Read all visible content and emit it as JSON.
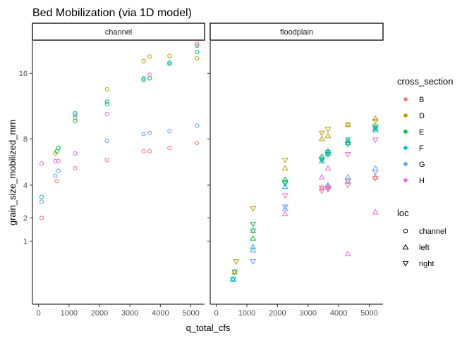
{
  "chart_data": {
    "type": "scatter",
    "title": "Bed Mobilization (via 1D model)",
    "xlabel": "q_total_cfs",
    "ylabel": "grain_size_mobilized_mm",
    "xlim": [
      -200,
      5450
    ],
    "ylim": [
      -0.6,
      21
    ],
    "x_ticks": [
      0,
      1000,
      2000,
      3000,
      4000,
      5000
    ],
    "x_tick_labels": [
      "0",
      "1000",
      "2000",
      "3000",
      "4000",
      "5000"
    ],
    "y_scale": "sqrt",
    "y_ticks": [
      1,
      2,
      4,
      8,
      16
    ],
    "y_tick_labels": [
      "1",
      "2",
      "4",
      "8",
      "16"
    ],
    "facets": [
      "channel",
      "floodplain"
    ],
    "legend_placement": "right",
    "colour_legend": {
      "title": "cross_section",
      "entries": [
        {
          "label": "B",
          "color": "#F8766D"
        },
        {
          "label": "D",
          "color": "#B79F00"
        },
        {
          "label": "E",
          "color": "#00BA38"
        },
        {
          "label": "F",
          "color": "#00BFC4"
        },
        {
          "label": "G",
          "color": "#619CFF"
        },
        {
          "label": "H",
          "color": "#F564E3"
        }
      ]
    },
    "shape_legend": {
      "title": "loc",
      "entries": [
        {
          "label": "channel",
          "shape": "circle"
        },
        {
          "label": "left",
          "shape": "triangle-up"
        },
        {
          "label": "right",
          "shape": "triangle-down"
        }
      ]
    },
    "series": [
      {
        "panel": "channel",
        "cross_section": "B",
        "loc": "channel",
        "x": [
          100,
          600,
          1200,
          2250,
          3450,
          3650,
          4300,
          5200
        ],
        "y": [
          2.0,
          4.3,
          5.3,
          6.0,
          6.8,
          6.8,
          7.1,
          7.6
        ]
      },
      {
        "panel": "channel",
        "cross_section": "D",
        "loc": "channel",
        "x": [
          550,
          1200,
          2250,
          3450,
          3650,
          4300,
          5200
        ],
        "y": [
          6.6,
          10.3,
          13.8,
          17.8,
          18.5,
          18.6,
          18.2
        ]
      },
      {
        "panel": "channel",
        "cross_section": "E",
        "loc": "channel",
        "x": [
          600,
          650,
          1200,
          2250,
          3450,
          3650,
          4300,
          5200
        ],
        "y": [
          6.8,
          7.1,
          9.9,
          12.2,
          15.1,
          15.3,
          17.4,
          20.2
        ]
      },
      {
        "panel": "channel",
        "cross_section": "F",
        "loc": "channel",
        "x": [
          100,
          1200,
          2250,
          3450,
          4300,
          5200
        ],
        "y": [
          3.2,
          10.8,
          11.9,
          15.3,
          17.6,
          19.2
        ]
      },
      {
        "panel": "channel",
        "cross_section": "G",
        "loc": "channel",
        "x": [
          100,
          550,
          650,
          1200,
          2250,
          3450,
          3650,
          4300,
          5200
        ],
        "y": [
          2.9,
          4.7,
          5.1,
          10.6,
          7.8,
          8.5,
          8.6,
          8.8,
          9.4
        ]
      },
      {
        "panel": "channel",
        "cross_section": "H",
        "loc": "channel",
        "x": [
          100,
          550,
          650,
          1200,
          2250,
          3650,
          5200
        ],
        "y": [
          5.7,
          5.9,
          5.9,
          6.6,
          10.7,
          15.8,
          20.5
        ]
      },
      {
        "panel": "floodplain",
        "cross_section": "B",
        "loc": "left",
        "x": [
          3450,
          3650,
          4300,
          5200
        ],
        "y": [
          3.8,
          3.9,
          4.3,
          4.6
        ]
      },
      {
        "panel": "floodplain",
        "cross_section": "B",
        "loc": "right",
        "x": [
          3450,
          3650,
          4300,
          5200
        ],
        "y": [
          3.6,
          3.7,
          4.0,
          4.5
        ]
      },
      {
        "panel": "floodplain",
        "cross_section": "D",
        "loc": "left",
        "x": [
          600,
          1200,
          2250,
          3450,
          3650,
          4300,
          5200
        ],
        "y": [
          0.2,
          1.4,
          5.3,
          8.0,
          8.3,
          9.5,
          10.2
        ]
      },
      {
        "panel": "floodplain",
        "cross_section": "D",
        "loc": "right",
        "x": [
          650,
          1200,
          2250,
          3450,
          3650,
          4300,
          5200
        ],
        "y": [
          0.4,
          2.5,
          6.0,
          8.6,
          9.0,
          9.5,
          9.9
        ]
      },
      {
        "panel": "floodplain",
        "cross_section": "E",
        "loc": "left",
        "x": [
          550,
          1200,
          2250,
          3450,
          3650,
          4300,
          5200
        ],
        "y": [
          0.1,
          1.1,
          4.4,
          6.3,
          6.8,
          7.8,
          9.1
        ]
      },
      {
        "panel": "floodplain",
        "cross_section": "E",
        "loc": "right",
        "x": [
          600,
          1200,
          2250,
          3450,
          3650,
          4300,
          5200
        ],
        "y": [
          0.2,
          1.7,
          4.2,
          6.0,
          6.5,
          7.5,
          9.3
        ]
      },
      {
        "panel": "floodplain",
        "cross_section": "F",
        "loc": "left",
        "x": [
          550,
          1200,
          2250,
          3450,
          3650,
          4300,
          5200
        ],
        "y": [
          0.1,
          0.8,
          3.9,
          5.9,
          6.6,
          7.6,
          8.9
        ]
      },
      {
        "panel": "floodplain",
        "cross_section": "F",
        "loc": "right",
        "x": [
          550,
          1200,
          2250,
          3450,
          3650,
          4300,
          5200
        ],
        "y": [
          0.1,
          1.4,
          4.1,
          6.1,
          6.7,
          7.9,
          9.1
        ]
      },
      {
        "panel": "floodplain",
        "cross_section": "G",
        "loc": "left",
        "x": [
          1200,
          2250,
          3650,
          4300,
          5200
        ],
        "y": [
          0.7,
          2.5,
          4.0,
          4.6,
          5.3
        ]
      },
      {
        "panel": "floodplain",
        "cross_section": "G",
        "loc": "right",
        "x": [
          1200,
          2250,
          3650,
          4300,
          5200
        ],
        "y": [
          0.4,
          2.6,
          3.8,
          4.3,
          5.0
        ]
      },
      {
        "panel": "floodplain",
        "cross_section": "H",
        "loc": "left",
        "x": [
          2250,
          3450,
          3650,
          4300,
          5200
        ],
        "y": [
          2.2,
          4.6,
          5.3,
          0.6,
          2.3
        ]
      },
      {
        "panel": "floodplain",
        "cross_section": "H",
        "loc": "right",
        "x": [
          2250,
          3450,
          3650,
          4300,
          5200
        ],
        "y": [
          3.3,
          3.8,
          3.8,
          6.5,
          7.9
        ]
      }
    ]
  }
}
